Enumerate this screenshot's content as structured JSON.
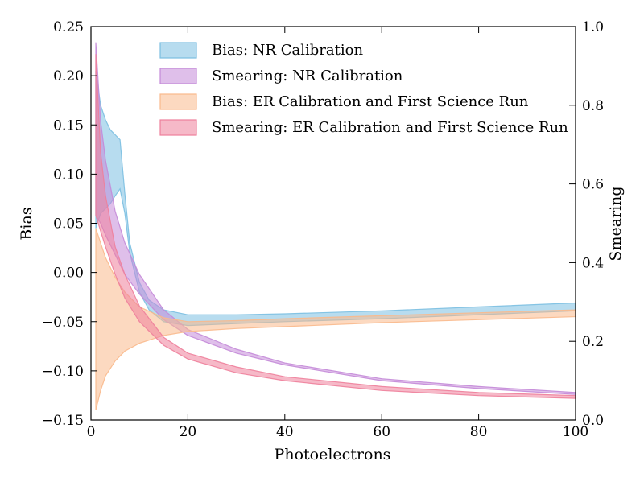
{
  "chart_data": {
    "type": "area",
    "xlabel": "Photoelectrons",
    "ylabel_left": "Bias",
    "ylabel_right": "Smearing",
    "xlim": [
      0,
      100
    ],
    "ylim_left": [
      -0.15,
      0.25
    ],
    "ylim_right": [
      0.0,
      1.0
    ],
    "x_ticks": [
      0,
      20,
      40,
      60,
      80,
      100
    ],
    "x_tick_labels": [
      "0",
      "20",
      "40",
      "60",
      "80",
      "100"
    ],
    "left_ticks": [
      0.25,
      0.2,
      0.15,
      0.1,
      0.05,
      0.0,
      -0.05,
      -0.1,
      -0.15
    ],
    "left_tick_labels": [
      "0.25",
      "0.20",
      "0.15",
      "0.10",
      "0.05",
      "0.00",
      "−0.05",
      "−0.10",
      "−0.15"
    ],
    "right_ticks": [
      1.0,
      0.8,
      0.6,
      0.4,
      0.2,
      0.0
    ],
    "right_tick_labels": [
      "1.0",
      "0.8",
      "0.6",
      "0.4",
      "0.2",
      "0.0"
    ],
    "legend_position": "top-center",
    "series": [
      {
        "name": "Bias: NR Calibration",
        "axis": "left",
        "color": "#7bbfe1",
        "x": [
          1,
          2,
          3,
          4,
          5,
          6,
          7,
          8,
          10,
          12,
          15,
          20,
          30,
          40,
          60,
          80,
          100
        ],
        "upper": [
          0.205,
          0.17,
          0.155,
          0.145,
          0.14,
          0.135,
          0.08,
          0.03,
          -0.01,
          -0.028,
          -0.038,
          -0.043,
          -0.043,
          -0.042,
          -0.039,
          -0.035,
          -0.031
        ],
        "lower": [
          0.045,
          0.06,
          0.065,
          0.07,
          0.078,
          0.085,
          0.06,
          0.02,
          -0.02,
          -0.038,
          -0.05,
          -0.054,
          -0.052,
          -0.05,
          -0.047,
          -0.043,
          -0.039
        ]
      },
      {
        "name": "Smearing: NR Calibration",
        "axis": "right",
        "color": "#c48ad8",
        "x": [
          1,
          2,
          3,
          5,
          7,
          10,
          15,
          20,
          30,
          40,
          60,
          80,
          100
        ],
        "upper": [
          0.96,
          0.76,
          0.66,
          0.53,
          0.45,
          0.37,
          0.28,
          0.23,
          0.18,
          0.145,
          0.105,
          0.085,
          0.07
        ],
        "lower": [
          0.52,
          0.5,
          0.47,
          0.42,
          0.37,
          0.32,
          0.255,
          0.215,
          0.17,
          0.14,
          0.1,
          0.08,
          0.065
        ]
      },
      {
        "name": "Bias: ER Calibration and First Science Run",
        "axis": "left",
        "color": "#f9b98c",
        "x": [
          1,
          2,
          3,
          5,
          7,
          10,
          15,
          20,
          30,
          40,
          60,
          80,
          100
        ],
        "upper": [
          0.045,
          0.03,
          0.015,
          -0.005,
          -0.02,
          -0.035,
          -0.046,
          -0.05,
          -0.049,
          -0.047,
          -0.044,
          -0.041,
          -0.038
        ],
        "lower": [
          -0.14,
          -0.12,
          -0.105,
          -0.09,
          -0.08,
          -0.072,
          -0.064,
          -0.06,
          -0.057,
          -0.055,
          -0.051,
          -0.048,
          -0.045
        ]
      },
      {
        "name": "Smearing: ER Calibration and First Science Run",
        "axis": "right",
        "color": "#ee7f9b",
        "x": [
          1,
          2,
          3,
          5,
          7,
          10,
          15,
          20,
          30,
          40,
          60,
          80,
          100
        ],
        "upper": [
          0.93,
          0.68,
          0.57,
          0.44,
          0.37,
          0.29,
          0.21,
          0.17,
          0.135,
          0.11,
          0.085,
          0.07,
          0.062
        ],
        "lower": [
          0.52,
          0.48,
          0.44,
          0.37,
          0.31,
          0.25,
          0.19,
          0.155,
          0.12,
          0.1,
          0.075,
          0.062,
          0.055
        ]
      }
    ]
  }
}
